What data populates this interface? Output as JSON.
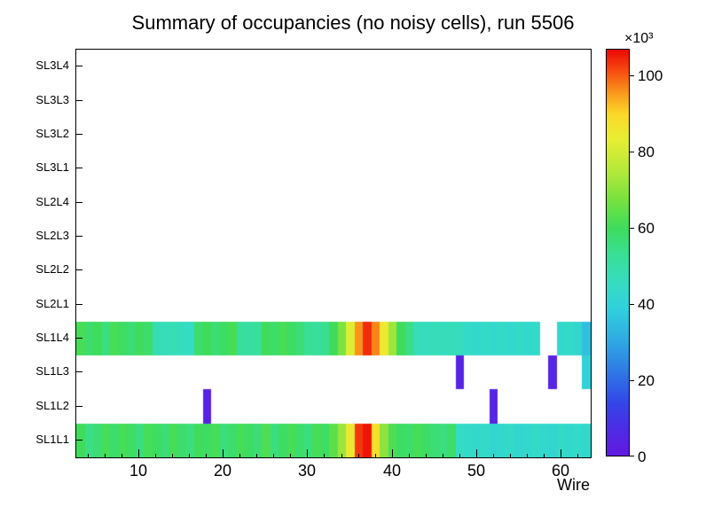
{
  "chart_data": {
    "type": "heatmap",
    "title": "Summary of occupancies (no noisy cells), run 5506",
    "xlabel": "Wire",
    "x_range": [
      2.5,
      63.5
    ],
    "x_ticks": [
      10,
      20,
      30,
      40,
      50,
      60
    ],
    "x_minor_tick_step": 2,
    "rows_bottom_to_top": [
      "SL1L1",
      "SL1L2",
      "SL1L3",
      "SL1L4",
      "SL2L1",
      "SL2L2",
      "SL2L3",
      "SL2L4",
      "SL3L1",
      "SL3L2",
      "SL3L3",
      "SL3L4"
    ],
    "z_scale_label": "×10³",
    "z_ticks": [
      0,
      20,
      40,
      60,
      80,
      100
    ],
    "z_max": 107,
    "palette": [
      {
        "t": 0.0,
        "c": "#621ae0"
      },
      {
        "t": 0.06,
        "c": "#4f2ae4"
      },
      {
        "t": 0.13,
        "c": "#3346e8"
      },
      {
        "t": 0.2,
        "c": "#2f74e6"
      },
      {
        "t": 0.28,
        "c": "#2fa8e2"
      },
      {
        "t": 0.36,
        "c": "#30cfdd"
      },
      {
        "t": 0.42,
        "c": "#35dcc4"
      },
      {
        "t": 0.5,
        "c": "#39df92"
      },
      {
        "t": 0.56,
        "c": "#3edc5b"
      },
      {
        "t": 0.63,
        "c": "#77e23f"
      },
      {
        "t": 0.7,
        "c": "#b3e93a"
      },
      {
        "t": 0.78,
        "c": "#e7ee33"
      },
      {
        "t": 0.84,
        "c": "#fcd829"
      },
      {
        "t": 0.89,
        "c": "#fa9d1d"
      },
      {
        "t": 0.94,
        "c": "#f75511"
      },
      {
        "t": 1.0,
        "c": "#ec0905"
      }
    ],
    "cells": {
      "SL1L1": [
        {
          "start": 3,
          "values": [
            60,
            55,
            57,
            61,
            58,
            61,
            59,
            56,
            61,
            59,
            57,
            61,
            58,
            56,
            60,
            59,
            61,
            56,
            58,
            61,
            59,
            57,
            62,
            56,
            59,
            61,
            58,
            56,
            61,
            59,
            64,
            72,
            85,
            103,
            106,
            88,
            70,
            62,
            59,
            58,
            61,
            59,
            57,
            56,
            58,
            45,
            44,
            43,
            44,
            42,
            43,
            44,
            42,
            43,
            44,
            43,
            42,
            44,
            43,
            44,
            43
          ]
        }
      ],
      "SL1L2": [
        {
          "start": 18,
          "values": [
            4
          ]
        },
        {
          "start": 52,
          "values": [
            4
          ]
        }
      ],
      "SL1L3": [
        {
          "start": 48,
          "values": [
            4
          ]
        },
        {
          "start": 59,
          "values": [
            4
          ]
        },
        {
          "start": 63,
          "values": [
            40
          ]
        }
      ],
      "SL1L4": [
        {
          "start": 3,
          "values": [
            61,
            58,
            60,
            56,
            61,
            59,
            57,
            60,
            58,
            48,
            47,
            48,
            46,
            45,
            58,
            60,
            57,
            59,
            61,
            52,
            51,
            52,
            60,
            58,
            61,
            59,
            57,
            53,
            52,
            54,
            60,
            68,
            82,
            96,
            104,
            97,
            85,
            72,
            60,
            55,
            47,
            46,
            47,
            46,
            47,
            46,
            44,
            43,
            44,
            43,
            44,
            43,
            44,
            43,
            44
          ]
        },
        {
          "start": 60,
          "values": [
            43,
            44,
            42,
            35
          ]
        }
      ]
    }
  }
}
